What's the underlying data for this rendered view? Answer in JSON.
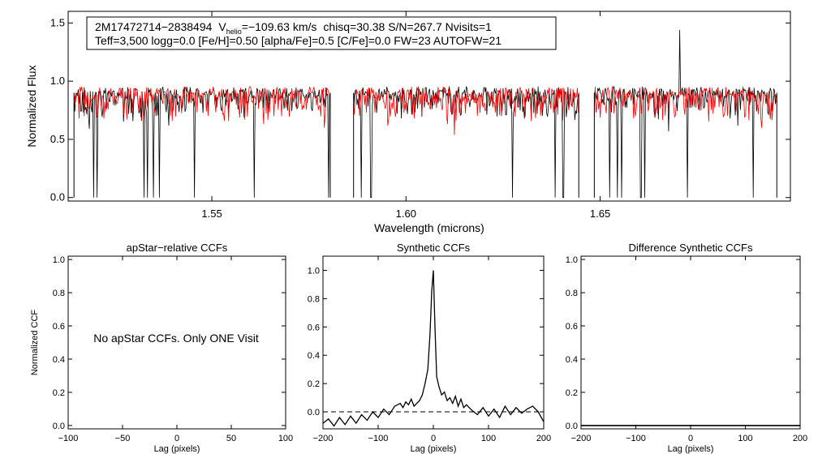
{
  "info_box": {
    "star_id": "2M17472714−2838494",
    "vhelio_prefix": "V",
    "vhelio_sub": "helio",
    "vhelio_value": "=−109.63 km/s",
    "rest_line1": "chisq=30.38  S/N=267.7  Nvisits=1",
    "line2": "Teff=3,500 logg=0.0 [Fe/H]=0.50 [alpha/Fe]=0.5 [C/Fe]=0.0 FW=23 AUTOFW=21"
  },
  "colors": {
    "observed": "#000000",
    "model": "#ff0000",
    "axes": "#000000"
  },
  "chart_data": [
    {
      "id": "spectrum",
      "type": "line",
      "title": "",
      "xlabel": "Wavelength (microns)",
      "ylabel": "Normalized Flux",
      "xlim": [
        1.513,
        1.699
      ],
      "ylim": [
        -0.03,
        1.6
      ],
      "xticks": [
        1.55,
        1.6,
        1.65
      ],
      "xtick_labels": [
        "1.55",
        "1.60",
        "1.65"
      ],
      "yticks": [
        0.0,
        0.5,
        1.0,
        1.5
      ],
      "ytick_labels": [
        "0.0",
        "0.5",
        "1.0",
        "1.5"
      ],
      "chips": [
        [
          1.5145,
          1.5805
        ],
        [
          1.5865,
          1.6445
        ],
        [
          1.6485,
          1.6955
        ]
      ],
      "series": [
        {
          "name": "observed",
          "color": "#000000",
          "continuum": 0.9,
          "noise_depth": 0.22,
          "seed": 11
        },
        {
          "name": "model",
          "color": "#ff0000",
          "continuum": 0.9,
          "noise_depth": 0.25,
          "seed": 29
        }
      ],
      "deep_lines": [
        1.5195,
        1.5205,
        1.5325,
        1.5335,
        1.535,
        1.5365,
        1.5455,
        1.561,
        1.58,
        1.5885,
        1.591,
        1.6275,
        1.6385,
        1.6405,
        1.6525,
        1.6545,
        1.6555,
        1.6605,
        1.6615,
        1.6725,
        1.6895
      ],
      "emission_spike": {
        "x": 1.6705,
        "y": 1.44
      }
    },
    {
      "id": "apstar-ccf",
      "type": "line",
      "title": "apStar−relative CCFs",
      "xlabel": "Lag (pixels)",
      "ylabel": "Normalized CCF",
      "xlim": [
        -100,
        100
      ],
      "ylim": [
        -0.02,
        1.02
      ],
      "xticks": [
        -100,
        -50,
        0,
        50,
        100
      ],
      "xtick_labels": [
        "−100",
        "−50",
        "0",
        "50",
        "100"
      ],
      "yticks": [
        0.0,
        0.2,
        0.4,
        0.6,
        0.8,
        1.0
      ],
      "ytick_labels": [
        "0.0",
        "0.2",
        "0.4",
        "0.6",
        "0.8",
        "1.0"
      ],
      "message": "No apStar CCFs.  Only ONE Visit"
    },
    {
      "id": "synthetic-ccf",
      "type": "line",
      "title": "Synthetic CCFs",
      "xlabel": "Lag (pixels)",
      "ylabel": "",
      "xlim": [
        -200,
        200
      ],
      "ylim": [
        -0.12,
        1.1
      ],
      "xticks": [
        -200,
        -100,
        0,
        100,
        200
      ],
      "xtick_labels": [
        "−200",
        "−100",
        "0",
        "100",
        "200"
      ],
      "yticks": [
        0.0,
        0.2,
        0.4,
        0.6,
        0.8,
        1.0
      ],
      "ytick_labels": [
        "0.0",
        "0.2",
        "0.4",
        "0.6",
        "0.8",
        "1.0"
      ],
      "baseline": 0.0,
      "peak": {
        "x": 0,
        "y": 1.0
      },
      "ccf_x": [
        -200,
        -190,
        -180,
        -170,
        -160,
        -150,
        -140,
        -130,
        -120,
        -110,
        -100,
        -90,
        -80,
        -70,
        -60,
        -55,
        -50,
        -45,
        -40,
        -35,
        -30,
        -25,
        -20,
        -15,
        -10,
        -6,
        -3,
        0,
        3,
        6,
        10,
        15,
        20,
        25,
        30,
        35,
        40,
        45,
        50,
        55,
        60,
        70,
        80,
        90,
        100,
        110,
        120,
        130,
        140,
        150,
        160,
        170,
        180,
        190,
        200
      ],
      "ccf_y": [
        -0.08,
        -0.05,
        -0.1,
        -0.04,
        -0.09,
        -0.03,
        -0.08,
        -0.02,
        -0.06,
        0.0,
        -0.04,
        0.02,
        -0.02,
        0.04,
        0.06,
        0.03,
        0.07,
        0.05,
        0.09,
        0.04,
        0.06,
        0.08,
        0.12,
        0.2,
        0.3,
        0.55,
        0.85,
        1.0,
        0.6,
        0.25,
        0.18,
        0.12,
        0.14,
        0.08,
        0.1,
        0.06,
        0.11,
        0.04,
        0.09,
        0.03,
        0.05,
        0.01,
        -0.02,
        0.03,
        -0.03,
        0.02,
        -0.04,
        0.04,
        -0.02,
        0.03,
        -0.01,
        0.02,
        0.04,
        0.0,
        -0.07
      ]
    },
    {
      "id": "difference-ccf",
      "type": "line",
      "title": "Difference Synthetic CCFs",
      "xlabel": "Lag (pixels)",
      "ylabel": "",
      "xlim": [
        -200,
        200
      ],
      "ylim": [
        -0.02,
        1.02
      ],
      "xticks": [
        -200,
        -100,
        0,
        100,
        200
      ],
      "xtick_labels": [
        "−200",
        "−100",
        "0",
        "100",
        "200"
      ],
      "yticks": [
        0.0,
        0.2,
        0.4,
        0.6,
        0.8,
        1.0
      ],
      "ytick_labels": [
        "0.0",
        "0.2",
        "0.4",
        "0.6",
        "0.8",
        "1.0"
      ],
      "series_value": 0.0
    }
  ]
}
